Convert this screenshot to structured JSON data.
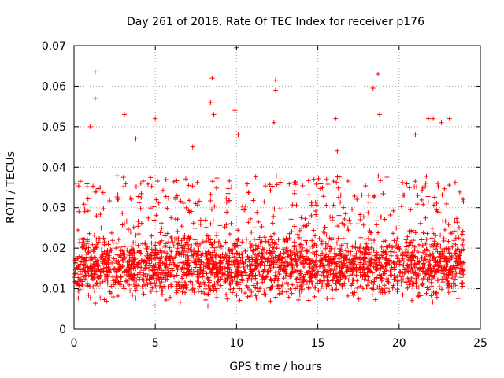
{
  "chart_data": {
    "type": "scatter",
    "title": "Day 261 of 2018, Rate Of TEC Index for receiver p176",
    "xlabel": "GPS time / hours",
    "ylabel": "ROTI / TECUs",
    "xlim": [
      0,
      25
    ],
    "ylim": [
      0,
      0.07
    ],
    "x_ticks": [
      0,
      5,
      10,
      15,
      20,
      25
    ],
    "x_tick_labels": [
      "0",
      "5",
      "10",
      "15",
      "20",
      "25"
    ],
    "y_ticks": [
      0,
      0.01,
      0.02,
      0.03,
      0.04,
      0.05,
      0.06,
      0.07
    ],
    "y_tick_labels": [
      "0",
      "0.01",
      "0.02",
      "0.03",
      "0.04",
      "0.05",
      "0.06",
      "0.07"
    ],
    "grid": true,
    "marker": "+",
    "series_color": "#ff0000",
    "data_x_range": [
      0,
      24
    ],
    "baseline_band": [
      0.005,
      0.03
    ],
    "notable_spikes": [
      {
        "x": 1.3,
        "y": 0.0635
      },
      {
        "x": 1.3,
        "y": 0.057
      },
      {
        "x": 1.0,
        "y": 0.05
      },
      {
        "x": 3.1,
        "y": 0.053
      },
      {
        "x": 3.8,
        "y": 0.047
      },
      {
        "x": 5.0,
        "y": 0.052
      },
      {
        "x": 8.5,
        "y": 0.062
      },
      {
        "x": 8.4,
        "y": 0.056
      },
      {
        "x": 8.6,
        "y": 0.053
      },
      {
        "x": 10.0,
        "y": 0.0695
      },
      {
        "x": 9.9,
        "y": 0.054
      },
      {
        "x": 10.1,
        "y": 0.048
      },
      {
        "x": 12.4,
        "y": 0.0615
      },
      {
        "x": 12.4,
        "y": 0.059
      },
      {
        "x": 12.3,
        "y": 0.051
      },
      {
        "x": 16.1,
        "y": 0.052
      },
      {
        "x": 18.4,
        "y": 0.0595
      },
      {
        "x": 18.7,
        "y": 0.063
      },
      {
        "x": 18.8,
        "y": 0.053
      },
      {
        "x": 21.0,
        "y": 0.048
      },
      {
        "x": 21.8,
        "y": 0.052
      },
      {
        "x": 22.1,
        "y": 0.052
      },
      {
        "x": 22.6,
        "y": 0.051
      },
      {
        "x": 23.1,
        "y": 0.052
      },
      {
        "x": 16.2,
        "y": 0.044
      },
      {
        "x": 7.3,
        "y": 0.045
      }
    ]
  }
}
